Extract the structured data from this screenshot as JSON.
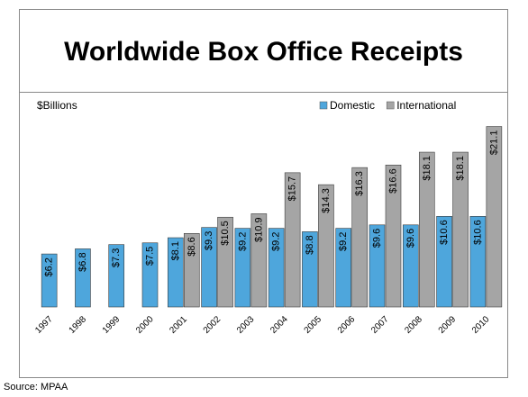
{
  "slide": {
    "title": "Worldwide Box Office Receipts",
    "source": "Source:  MPAA"
  },
  "chart_data": {
    "type": "bar",
    "title": "Worldwide Box Office Receipts",
    "ylabel": "$Billions",
    "xlabel": "",
    "categories": [
      "1997",
      "1998",
      "1999",
      "2000",
      "2001",
      "2002",
      "2003",
      "2004",
      "2005",
      "2006",
      "2007",
      "2008",
      "2009",
      "2010"
    ],
    "series": [
      {
        "name": "Domestic",
        "color": "#4ea6dc",
        "values": [
          6.2,
          6.8,
          7.3,
          7.5,
          8.1,
          9.3,
          9.2,
          9.2,
          8.8,
          9.2,
          9.6,
          9.6,
          10.6,
          10.6
        ],
        "labels": [
          "$6.2",
          "$6.8",
          "$7.3",
          "$7.5",
          "$8.1",
          "$9.3",
          "$9.2",
          "$9.2",
          "$8.8",
          "$9.2",
          "$9.6",
          "$9.6",
          "$10.6",
          "$10.6"
        ]
      },
      {
        "name": "International",
        "color": "#a5a5a5",
        "values": [
          null,
          null,
          null,
          null,
          8.6,
          10.5,
          10.9,
          15.7,
          14.3,
          16.3,
          16.6,
          18.1,
          18.1,
          21.1
        ],
        "labels": [
          null,
          null,
          null,
          null,
          "$8.6",
          "$10.5",
          "$10.9",
          "$15.7",
          "$14.3",
          "$16.3",
          "$16.6",
          "$18.1",
          "$18.1",
          "$21.1"
        ]
      }
    ],
    "ylim": [
      0,
      22
    ],
    "legend": "top-right",
    "grid": false
  }
}
